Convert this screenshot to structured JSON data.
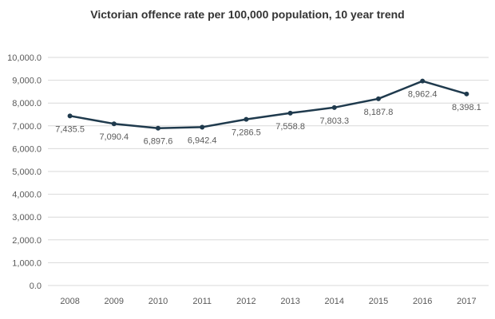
{
  "chart_data": {
    "type": "line",
    "title": "Victorian offence rate per 100,000 population, 10 year trend",
    "xlabel": "",
    "ylabel": "",
    "categories": [
      "2008",
      "2009",
      "2010",
      "2011",
      "2012",
      "2013",
      "2014",
      "2015",
      "2016",
      "2017"
    ],
    "series": [
      {
        "values": [
          7435.5,
          7090.4,
          6897.6,
          6942.4,
          7286.5,
          7558.8,
          7803.3,
          8187.8,
          8962.4,
          8398.1
        ],
        "data_labels": [
          "7,435.5",
          "7,090.4",
          "6,897.6",
          "6,942.4",
          "7,286.5",
          "7,558.8",
          "7,803.3",
          "8,187.8",
          "8,962.4",
          "8,398.1"
        ],
        "color": "#1f3a4d"
      }
    ],
    "ylim": [
      0,
      10000
    ],
    "y_ticks": [
      0,
      1000,
      2000,
      3000,
      4000,
      5000,
      6000,
      7000,
      8000,
      9000,
      10000
    ],
    "y_tick_labels": [
      "0.0",
      "1,000.0",
      "2,000.0",
      "3,000.0",
      "4,000.0",
      "5,000.0",
      "6,000.0",
      "7,000.0",
      "8,000.0",
      "9,000.0",
      "10,000.0"
    ],
    "grid": true,
    "legend": "none"
  }
}
